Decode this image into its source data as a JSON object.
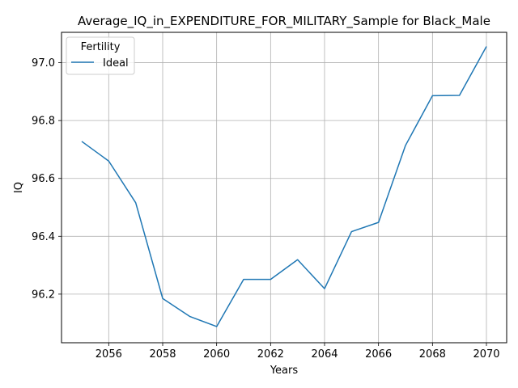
{
  "chart_data": {
    "type": "line",
    "title": "Average_IQ_in_EXPENDITURE_FOR_MILITARY_Sample for Black_Male",
    "xlabel": "Years",
    "ylabel": "IQ",
    "xlim": [
      2054.25,
      2070.75
    ],
    "ylim": [
      96.032,
      97.105
    ],
    "xticks": [
      2056,
      2058,
      2060,
      2062,
      2064,
      2066,
      2068,
      2070
    ],
    "yticks": [
      96.2,
      96.4,
      96.6,
      96.8,
      97.0
    ],
    "ytick_labels": [
      "96.2",
      "96.4",
      "96.6",
      "96.8",
      "97.0"
    ],
    "grid": true,
    "legend": {
      "title": "Fertility",
      "placement": "top-left"
    },
    "series": [
      {
        "name": "Ideal",
        "color": "#1f77b4",
        "x": [
          2055,
          2056,
          2057,
          2058,
          2059,
          2060,
          2061,
          2062,
          2063,
          2064,
          2065,
          2066,
          2067,
          2068,
          2069,
          2070
        ],
        "y": [
          96.728,
          96.66,
          96.516,
          96.185,
          96.123,
          96.088,
          96.251,
          96.251,
          96.319,
          96.219,
          96.416,
          96.448,
          96.714,
          96.886,
          96.887,
          97.056
        ]
      }
    ]
  }
}
